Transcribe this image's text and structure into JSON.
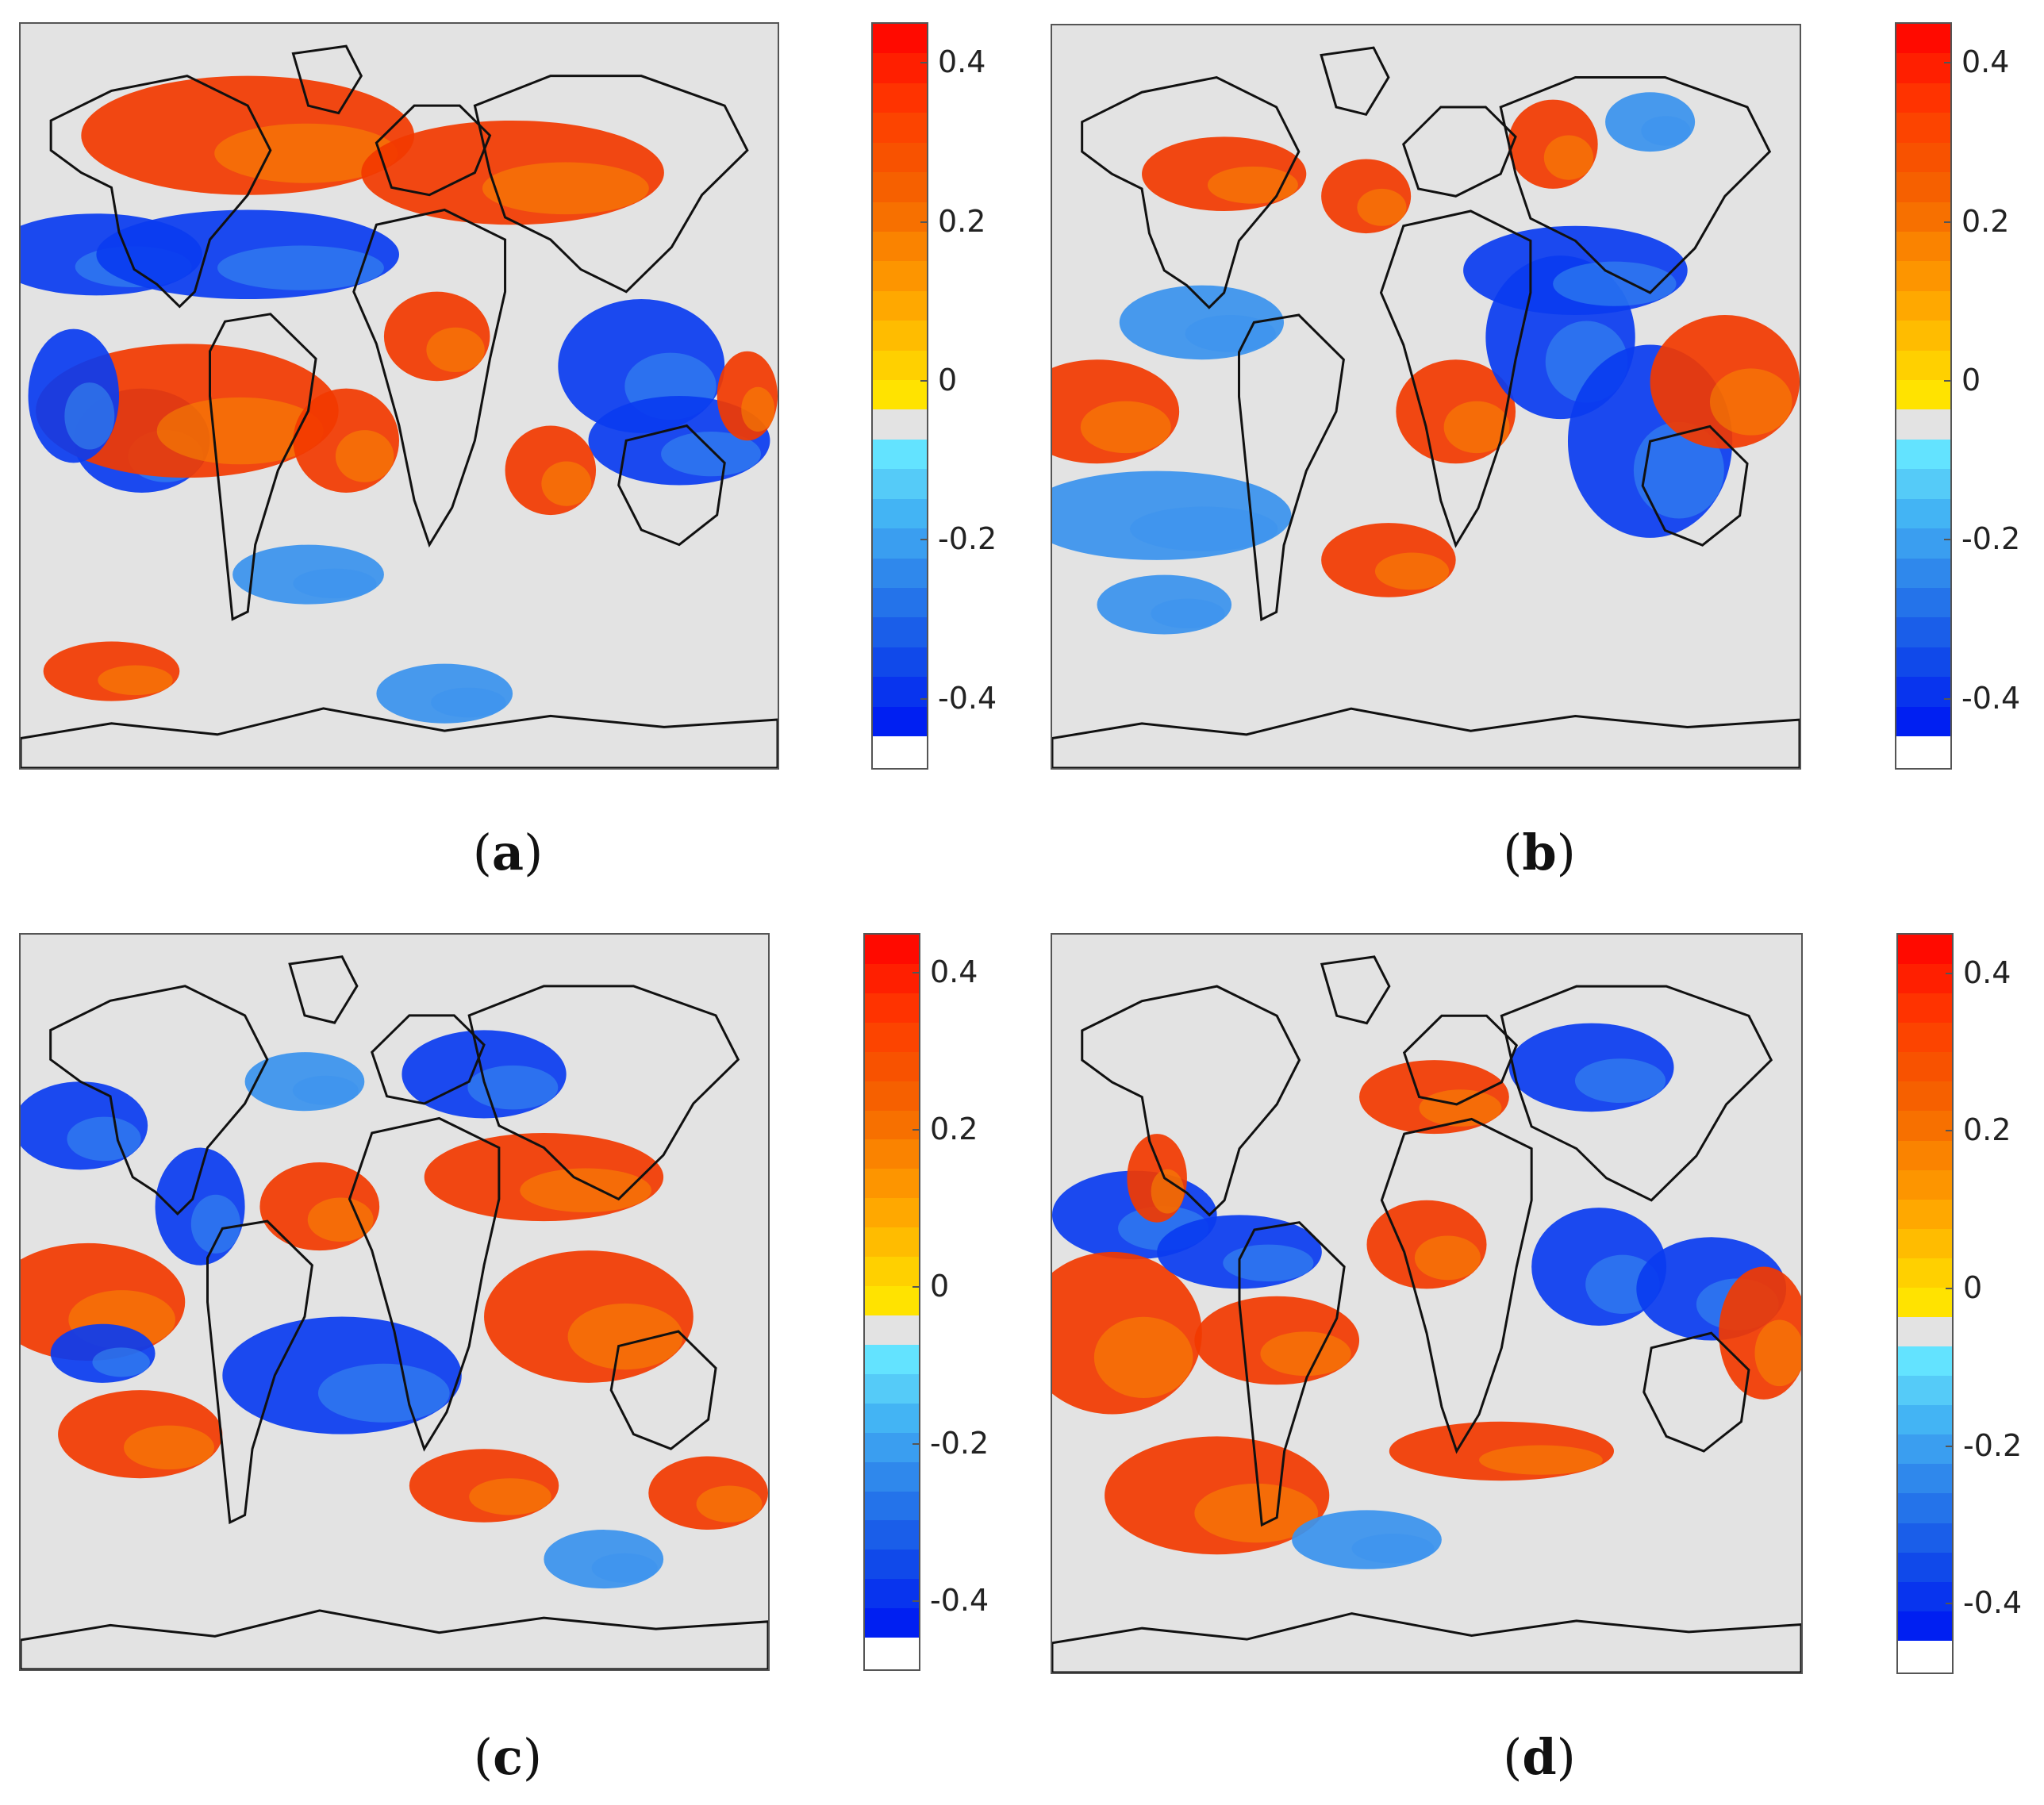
{
  "panels": [
    {
      "id": "a",
      "label_open": "(",
      "letter": "a",
      "label_close": ")"
    },
    {
      "id": "b",
      "label_open": "(",
      "letter": "b",
      "label_close": ")"
    },
    {
      "id": "c",
      "label_open": "(",
      "letter": "c",
      "label_close": ")"
    },
    {
      "id": "d",
      "label_open": "(",
      "letter": "d",
      "label_close": ")"
    }
  ],
  "colorbar": {
    "ticks": [
      {
        "value": 0.4,
        "label": "0.4"
      },
      {
        "value": 0.2,
        "label": "0.2"
      },
      {
        "value": 0,
        "label": "0"
      },
      {
        "value": -0.2,
        "label": "-0.2"
      },
      {
        "value": -0.4,
        "label": "-0.4"
      }
    ],
    "range": [
      -0.45,
      0.45
    ],
    "colors": [
      "#ff0a00",
      "#ff1f00",
      "#ff3300",
      "#fc4400",
      "#f85200",
      "#f66000",
      "#f77000",
      "#fa8300",
      "#fd9500",
      "#ffa800",
      "#ffbc00",
      "#ffd000",
      "#ffe300",
      "#e3e3e3",
      "#63e3ff",
      "#55cbf8",
      "#43b4f4",
      "#3a9ef0",
      "#2f88ec",
      "#2473ea",
      "#1a5ee9",
      "#1049ea",
      "#0834ee",
      "#001ff2"
    ]
  },
  "map_colors": {
    "background": "#e3e3e3",
    "coast": "#111111",
    "warm": "#f23a00",
    "warm_light": "#f78a00",
    "cool": "#0a3cf0",
    "cool_light": "#3a92ee"
  }
}
